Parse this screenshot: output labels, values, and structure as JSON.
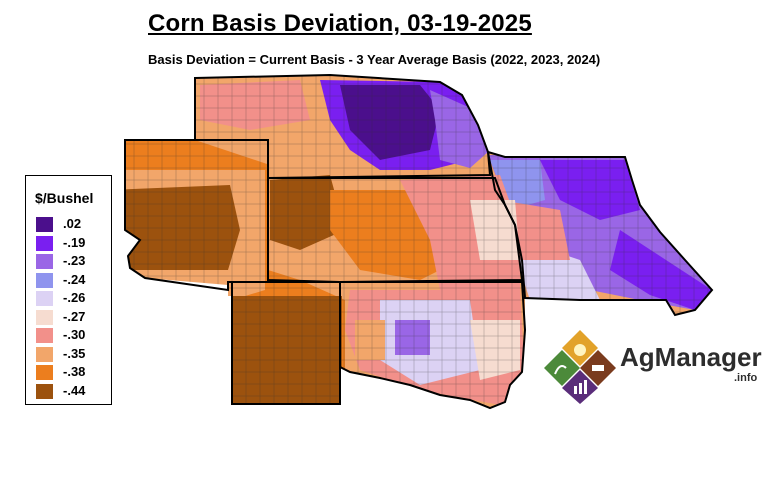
{
  "title": "Corn Basis Deviation, 03-19-2025",
  "subtitle": "Basis Deviation = Current Basis - 3 Year Average Basis (2022, 2023, 2024)",
  "legend": {
    "title": "$/Bushel",
    "items": [
      {
        "label": ".02",
        "color": "#4b0f8c"
      },
      {
        "label": "-.19",
        "color": "#7a1ff0"
      },
      {
        "label": "-.23",
        "color": "#9a66e6"
      },
      {
        "label": "-.24",
        "color": "#8f94ee"
      },
      {
        "label": "-.26",
        "color": "#dcd2f4"
      },
      {
        "label": "-.27",
        "color": "#f6dcd0"
      },
      {
        "label": "-.30",
        "color": "#f2908a"
      },
      {
        "label": "-.35",
        "color": "#f2a66a"
      },
      {
        "label": "-.38",
        "color": "#ec7e1e"
      },
      {
        "label": "-.44",
        "color": "#9c520e"
      }
    ]
  },
  "logo": {
    "name": "AgManager",
    "suffix": ".info"
  },
  "colors": {
    "border": "#000000",
    "county_line": "#333333"
  }
}
